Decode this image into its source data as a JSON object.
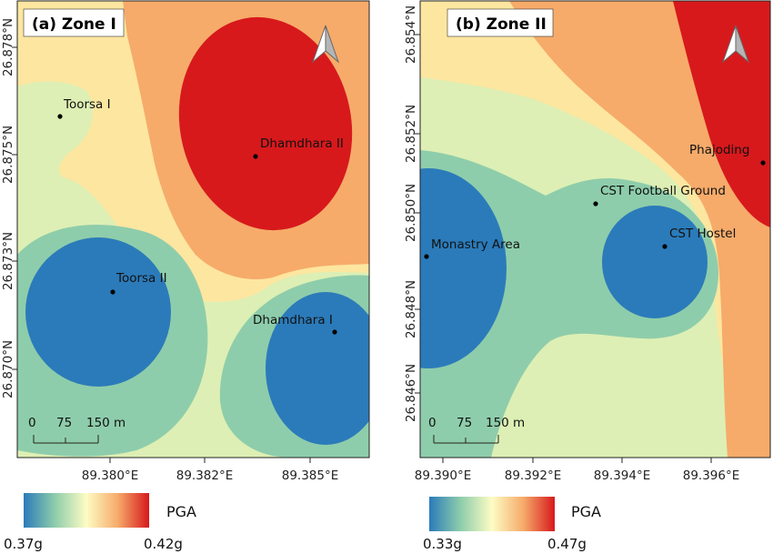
{
  "panels": [
    {
      "id": "zone-1",
      "title": "(a) Zone I",
      "x_ticks": [
        "89.380°E",
        "89.382°E",
        "89.385°E"
      ],
      "y_ticks": [
        "26.878°N",
        "26.875°N",
        "26.873°N",
        "26.870°N"
      ],
      "scale_bar": {
        "labels": [
          "0",
          "75",
          "150 m"
        ]
      },
      "sites": [
        {
          "name": "Toorsa I"
        },
        {
          "name": "Dhamdhara II"
        },
        {
          "name": "Toorsa II"
        },
        {
          "name": "Dhamdhara I"
        }
      ],
      "legend": {
        "title": "PGA",
        "min": "0.37g",
        "max": "0.42g"
      }
    },
    {
      "id": "zone-2",
      "title": "(b) Zone II",
      "x_ticks": [
        "89.390°E",
        "89.392°E",
        "89.394°E",
        "89.396°E"
      ],
      "y_ticks": [
        "26.854°N",
        "26.852°N",
        "26.850°N",
        "26.848°N",
        "26.846°N"
      ],
      "scale_bar": {
        "labels": [
          "0",
          "75",
          "150 m"
        ]
      },
      "sites": [
        {
          "name": "Phajoding"
        },
        {
          "name": "CST Football Ground"
        },
        {
          "name": "CST Hostel"
        },
        {
          "name": "Monastry Area"
        }
      ],
      "legend": {
        "title": "PGA",
        "min": "0.33g",
        "max": "0.47g"
      }
    }
  ],
  "colors": {
    "low": "#2b7bba",
    "low_mid": "#8ecdab",
    "mid_low": "#ddefb4",
    "mid": "#fde6a0",
    "mid_high": "#f6ab6a",
    "high": "#d7191c"
  }
}
